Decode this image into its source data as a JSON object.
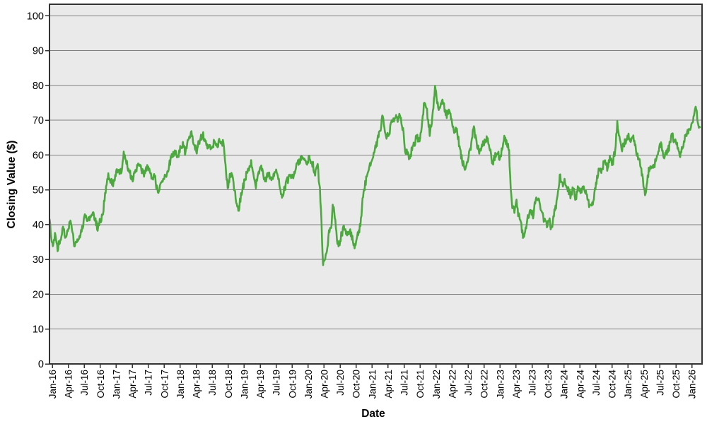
{
  "chart_data": {
    "type": "line",
    "title": "",
    "xlabel": "Date",
    "ylabel": "Closing Value ($)",
    "ylim": [
      0,
      100
    ],
    "y_ticks": [
      0,
      10,
      20,
      30,
      40,
      50,
      60,
      70,
      80,
      90,
      100
    ],
    "x_tick_interval_months": 3,
    "x_tick_labels": [
      "Jan-16",
      "Apr-16",
      "Jul-16",
      "Oct-16",
      "Jan-17",
      "Apr-17",
      "Jul-17",
      "Oct-17",
      "Jan-18",
      "Apr-18",
      "Jul-18",
      "Oct-18",
      "Jan-19",
      "Apr-19",
      "Jul-19",
      "Oct-19",
      "Jan-20",
      "Apr-20",
      "Jul-20",
      "Oct-20",
      "Jan-21",
      "Apr-21",
      "Jul-21",
      "Oct-21",
      "Jan-22",
      "Apr-22",
      "Jul-22",
      "Oct-22",
      "Jan-23",
      "Apr-23",
      "Jul-23",
      "Oct-23",
      "Jan-24",
      "Apr-24",
      "Jul-24",
      "Oct-24",
      "Jan-25",
      "Apr-25",
      "Jul-25",
      "Oct-25",
      "Jan-26"
    ],
    "x_range_months": [
      -0.5,
      121.5
    ],
    "grid": "horizontal-only",
    "legend": "none",
    "colors": {
      "line": "#4CA83F",
      "plot_bg": "#EAEAEA",
      "gridline": "#808080",
      "border": "#333333",
      "tick": "#333333",
      "text": "#000000",
      "figure_bg": "#FFFFFF"
    },
    "series": [
      {
        "name": "Closing Value ($)",
        "color": "#4CA83F",
        "jitter": {
          "seed": 20,
          "amplitude": 1.1,
          "step_months": 0.1
        },
        "keypoints": [
          [
            -0.5,
            41.5
          ],
          [
            -0.2,
            36
          ],
          [
            0.2,
            34
          ],
          [
            0.6,
            37.5
          ],
          [
            1,
            33
          ],
          [
            1.5,
            36
          ],
          [
            2,
            38.5
          ],
          [
            2.5,
            36.5
          ],
          [
            3,
            39.5
          ],
          [
            3.4,
            40.5
          ],
          [
            3.8,
            37.5
          ],
          [
            4.2,
            34
          ],
          [
            4.6,
            36
          ],
          [
            5,
            35
          ],
          [
            5.5,
            38.5
          ],
          [
            6.1,
            42.5
          ],
          [
            6.6,
            40.5
          ],
          [
            7.4,
            43.5
          ],
          [
            8,
            41.5
          ],
          [
            8.5,
            39
          ],
          [
            9,
            41
          ],
          [
            9.5,
            43
          ],
          [
            10,
            50
          ],
          [
            10.4,
            54
          ],
          [
            10.9,
            53
          ],
          [
            11.4,
            52
          ],
          [
            11.9,
            54.5
          ],
          [
            12.4,
            56
          ],
          [
            12.9,
            55
          ],
          [
            13.4,
            60
          ],
          [
            13.9,
            58
          ],
          [
            14.4,
            55.5
          ],
          [
            15,
            53
          ],
          [
            15.5,
            54.5
          ],
          [
            16.1,
            57.5
          ],
          [
            16.6,
            56
          ],
          [
            17.1,
            54.5
          ],
          [
            17.7,
            56.5
          ],
          [
            18.2,
            55.5
          ],
          [
            18.8,
            52.5
          ],
          [
            19.2,
            54
          ],
          [
            19.7,
            49.5
          ],
          [
            20.3,
            51
          ],
          [
            21,
            53
          ],
          [
            21.7,
            56
          ],
          [
            22.4,
            59.5
          ],
          [
            23,
            61
          ],
          [
            23.5,
            59.5
          ],
          [
            24,
            62
          ],
          [
            24.5,
            63
          ],
          [
            25,
            60.5
          ],
          [
            25.6,
            65
          ],
          [
            26.1,
            66
          ],
          [
            26.6,
            63
          ],
          [
            27.1,
            61.5
          ],
          [
            27.7,
            64.5
          ],
          [
            28.2,
            66
          ],
          [
            28.7,
            64.5
          ],
          [
            29.2,
            62.5
          ],
          [
            29.8,
            61.5
          ],
          [
            30.3,
            63.5
          ],
          [
            30.9,
            62.5
          ],
          [
            31.5,
            64.5
          ],
          [
            32.1,
            63
          ],
          [
            32.5,
            57
          ],
          [
            32.9,
            50.5
          ],
          [
            33.4,
            55
          ],
          [
            33.9,
            53
          ],
          [
            34.4,
            47.5
          ],
          [
            34.9,
            44
          ],
          [
            35.4,
            48.5
          ],
          [
            36,
            52
          ],
          [
            36.6,
            55.5
          ],
          [
            37.3,
            57.5
          ],
          [
            38.2,
            51.5
          ],
          [
            39,
            57
          ],
          [
            39.9,
            52.5
          ],
          [
            40.5,
            54.5
          ],
          [
            41.2,
            53
          ],
          [
            42,
            56
          ],
          [
            42.6,
            52
          ],
          [
            43.1,
            48.3
          ],
          [
            43.9,
            52
          ],
          [
            44.6,
            54
          ],
          [
            45.2,
            53
          ],
          [
            45.9,
            57.5
          ],
          [
            46.5,
            58.8
          ],
          [
            47,
            59.3
          ],
          [
            47.6,
            57
          ],
          [
            48.2,
            59
          ],
          [
            48.8,
            57.5
          ],
          [
            49.3,
            55
          ],
          [
            49.8,
            56.5
          ],
          [
            50.2,
            50
          ],
          [
            50.5,
            40
          ],
          [
            50.8,
            28.5
          ],
          [
            51.2,
            31
          ],
          [
            51.6,
            34
          ],
          [
            52,
            38.5
          ],
          [
            52.4,
            40.5
          ],
          [
            52.6,
            46.5
          ],
          [
            53,
            42
          ],
          [
            53.4,
            36
          ],
          [
            53.8,
            34
          ],
          [
            54.3,
            37.5
          ],
          [
            54.8,
            39.5
          ],
          [
            55.3,
            37.5
          ],
          [
            55.8,
            38.5
          ],
          [
            56.2,
            36.5
          ],
          [
            56.7,
            33.5
          ],
          [
            57.2,
            36.5
          ],
          [
            57.8,
            40
          ],
          [
            58.2,
            47
          ],
          [
            58.7,
            51.5
          ],
          [
            59.3,
            55.5
          ],
          [
            59.8,
            58.5
          ],
          [
            60.3,
            61
          ],
          [
            61,
            64
          ],
          [
            61.5,
            67
          ],
          [
            62,
            72
          ],
          [
            62.6,
            64.5
          ],
          [
            63.2,
            66.5
          ],
          [
            63.8,
            69.5
          ],
          [
            64.3,
            71
          ],
          [
            64.8,
            70.3
          ],
          [
            65.3,
            71.3
          ],
          [
            65.8,
            67
          ],
          [
            66.2,
            61.5
          ],
          [
            66.6,
            60.5
          ],
          [
            67,
            59.2
          ],
          [
            67.5,
            61.5
          ],
          [
            67.9,
            63.2
          ],
          [
            68.4,
            65.8
          ],
          [
            68.8,
            63.8
          ],
          [
            69.3,
            67.5
          ],
          [
            69.8,
            75.3
          ],
          [
            70.3,
            72.5
          ],
          [
            70.8,
            66.5
          ],
          [
            71.3,
            71
          ],
          [
            71.8,
            79.3
          ],
          [
            72.3,
            74.5
          ],
          [
            72.7,
            73
          ],
          [
            73.1,
            76
          ],
          [
            73.6,
            73.5
          ],
          [
            74,
            71.5
          ],
          [
            74.5,
            72.5
          ],
          [
            75,
            69.5
          ],
          [
            75.5,
            66.5
          ],
          [
            75.9,
            67.5
          ],
          [
            76.4,
            62.5
          ],
          [
            77,
            57.5
          ],
          [
            77.5,
            56.5
          ],
          [
            78,
            58.5
          ],
          [
            78.5,
            62.5
          ],
          [
            79,
            68.3
          ],
          [
            79.6,
            63.5
          ],
          [
            80.1,
            60.5
          ],
          [
            80.7,
            63
          ],
          [
            81.2,
            64.5
          ],
          [
            81.7,
            65
          ],
          [
            82.1,
            61.5
          ],
          [
            82.5,
            57.5
          ],
          [
            83,
            59.5
          ],
          [
            83.5,
            61
          ],
          [
            84,
            58.5
          ],
          [
            84.4,
            62.5
          ],
          [
            84.8,
            65
          ],
          [
            85.3,
            63
          ],
          [
            85.7,
            61.5
          ],
          [
            86,
            50
          ],
          [
            86.3,
            45
          ],
          [
            86.7,
            44
          ],
          [
            87.1,
            46.5
          ],
          [
            87.5,
            42.5
          ],
          [
            87.9,
            40.5
          ],
          [
            88.3,
            36.5
          ],
          [
            88.7,
            38
          ],
          [
            89.2,
            42
          ],
          [
            89.7,
            44.5
          ],
          [
            90.2,
            42.5
          ],
          [
            90.8,
            48.5
          ],
          [
            91.3,
            46.5
          ],
          [
            91.8,
            44.5
          ],
          [
            92.3,
            41
          ],
          [
            92.8,
            39.5
          ],
          [
            93.2,
            41.5
          ],
          [
            93.7,
            38.5
          ],
          [
            94.2,
            43.5
          ],
          [
            94.7,
            47
          ],
          [
            95.2,
            54
          ],
          [
            95.7,
            51.5
          ],
          [
            96.2,
            52.5
          ],
          [
            96.7,
            50
          ],
          [
            97.2,
            48.5
          ],
          [
            97.7,
            50.5
          ],
          [
            98.2,
            47.5
          ],
          [
            98.7,
            51
          ],
          [
            99.2,
            49.5
          ],
          [
            99.7,
            51.5
          ],
          [
            100.2,
            49
          ],
          [
            100.7,
            46
          ],
          [
            101.2,
            45.5
          ],
          [
            101.7,
            48.5
          ],
          [
            102.2,
            53.5
          ],
          [
            102.6,
            56.5
          ],
          [
            103.1,
            55.5
          ],
          [
            103.6,
            58.5
          ],
          [
            104.1,
            56.5
          ],
          [
            104.6,
            59.5
          ],
          [
            105.1,
            57.5
          ],
          [
            105.6,
            61.5
          ],
          [
            106,
            69
          ],
          [
            106.5,
            63.5
          ],
          [
            106.9,
            61.5
          ],
          [
            107.4,
            63.5
          ],
          [
            108,
            65.5
          ],
          [
            108.5,
            64.5
          ],
          [
            108.9,
            66
          ],
          [
            109.4,
            62
          ],
          [
            109.9,
            59.5
          ],
          [
            110.4,
            57.5
          ],
          [
            110.9,
            51.5
          ],
          [
            111.2,
            48
          ],
          [
            111.7,
            54
          ],
          [
            112.2,
            57.5
          ],
          [
            112.7,
            56
          ],
          [
            113.2,
            58.5
          ],
          [
            113.7,
            60.5
          ],
          [
            114.2,
            63.5
          ],
          [
            114.7,
            58.5
          ],
          [
            115.2,
            60.5
          ],
          [
            115.7,
            62
          ],
          [
            116.2,
            66.5
          ],
          [
            116.7,
            64
          ],
          [
            117.2,
            63
          ],
          [
            117.8,
            59
          ],
          [
            118.3,
            63
          ],
          [
            118.8,
            65.5
          ],
          [
            119.2,
            67
          ],
          [
            119.6,
            66.5
          ],
          [
            120,
            68.5
          ],
          [
            120.4,
            71.5
          ],
          [
            120.7,
            74.3
          ],
          [
            121.1,
            69.5
          ],
          [
            121.5,
            68
          ]
        ]
      }
    ]
  }
}
